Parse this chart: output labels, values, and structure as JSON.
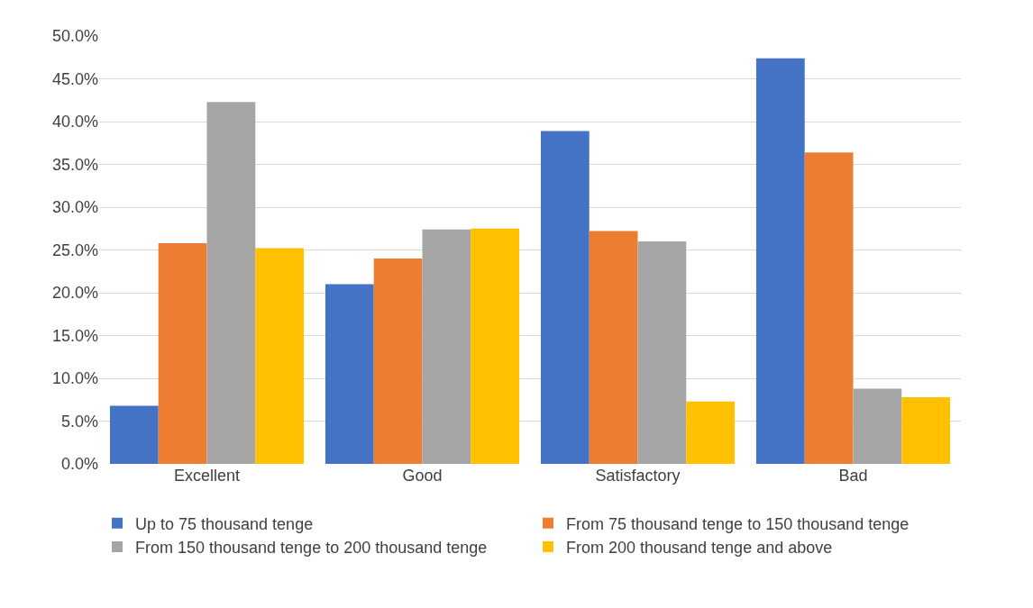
{
  "chart_data": {
    "type": "bar",
    "categories": [
      "Excellent",
      "Good",
      "Satisfactory",
      "Bad"
    ],
    "series": [
      {
        "name": "Up to 75 thousand tenge",
        "color": "#4472c4",
        "values": [
          6.8,
          21.0,
          38.9,
          47.4
        ]
      },
      {
        "name": "From 75 thousand tenge to 150 thousand tenge",
        "color": "#ed7d31",
        "values": [
          25.8,
          24.0,
          27.2,
          36.4
        ]
      },
      {
        "name": "From 150 thousand tenge to 200 thousand tenge",
        "color": "#a5a5a5",
        "values": [
          42.3,
          27.4,
          26.0,
          8.8
        ]
      },
      {
        "name": "From 200 thousand tenge and above",
        "color": "#ffc000",
        "values": [
          25.2,
          27.5,
          7.3,
          7.8
        ]
      }
    ],
    "ylim": [
      0,
      50
    ],
    "yticks": [
      {
        "value": 0,
        "label": "0.0%"
      },
      {
        "value": 5,
        "label": "5.0%"
      },
      {
        "value": 10,
        "label": "10.0%"
      },
      {
        "value": 15,
        "label": "15.0%"
      },
      {
        "value": 20,
        "label": "20.0%"
      },
      {
        "value": 25,
        "label": "25.0%"
      },
      {
        "value": 30,
        "label": "30.0%"
      },
      {
        "value": 35,
        "label": "35.0%"
      },
      {
        "value": 40,
        "label": "40.0%"
      },
      {
        "value": 45,
        "label": "45.0%"
      },
      {
        "value": 50,
        "label": "50.0%"
      }
    ],
    "grid": "y",
    "legend": "bottom"
  }
}
